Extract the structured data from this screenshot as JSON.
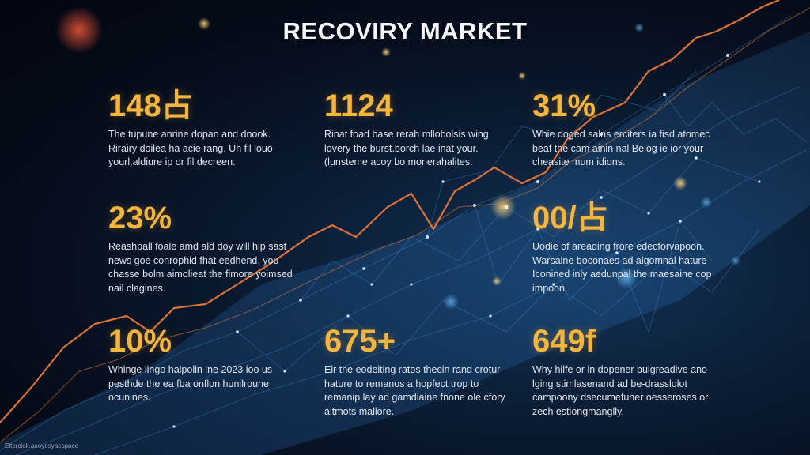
{
  "title": "RECOVIRY MARKET",
  "stats": [
    {
      "value": "148占",
      "desc": "The tupune anrine dopan and dnook. Rirairy doilea ha acie rang. Uh fil iouo yourl,aldiure ip or fil decreen."
    },
    {
      "value": "1124",
      "desc": "Rinat foad base rerah mllobolsis wing lovery the burst.borch lae inat your. (lunsteme acoy bo monerahalites."
    },
    {
      "value": "31%",
      "desc": "Whie doged salns erciters ia fisd atomec beaf the cam ainin nal Belog ie ior your cheasite mum idions."
    },
    {
      "value": "23%",
      "desc": "Reashpall foale amd ald doy will hip sast news goe conrophid fhat eedhend, you chasse bolm aimolieat the fimore yoimsed nail clagines."
    },
    {
      "value": "00/占",
      "desc": "Uodie of areading frore edecforvapoon. Warsaine boconaes ad algomnal hature Iconined inly aedunpal the maesaine cop impoon."
    },
    {
      "value": "10%",
      "desc": "Whinge lingo halpolin ine 2023 ioo us pesthde the ea fba onflon hunilroune ocunines."
    },
    {
      "value": "675+",
      "desc": "Eir the eodeiting ratos thecin rand crotur hature to remanos a hopfect trop to remanip lay ad gamdiaine fnone ole cfory altmots mallore."
    },
    {
      "value": "649f",
      "desc": "Why hilfe or in dopener buigreadive ano lging stimlasenand ad be-drasslolot campoony dsecumefuner oesseroses or zech estiongmanglly."
    }
  ],
  "footer": "Eiterdisk.aeoyosyaespace",
  "colors": {
    "background": "#050b18",
    "accent": "#f2b540",
    "trend_line": "#e8773a",
    "network": "#3f8fd8",
    "text": "#dfe5ee"
  }
}
